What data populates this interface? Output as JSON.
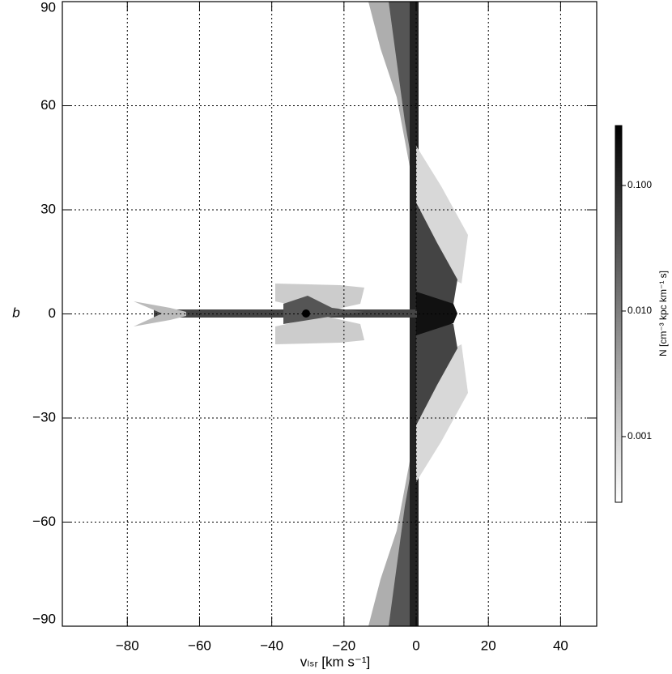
{
  "chart_data": {
    "type": "density-map",
    "xlabel": "vₗₛᵣ [km s⁻¹]",
    "ylabel": "b",
    "xlim": [
      -98,
      50
    ],
    "ylim": [
      -90,
      90
    ],
    "xticks": [
      {
        "value": -80,
        "label": "−80"
      },
      {
        "value": -60,
        "label": "−60"
      },
      {
        "value": -40,
        "label": "−40"
      },
      {
        "value": -20,
        "label": "−20"
      },
      0,
      20,
      40
    ],
    "yticks": [
      {
        "value": -90,
        "label": "−90"
      },
      {
        "value": -60,
        "label": "−60"
      },
      {
        "value": -30,
        "label": "−30"
      },
      0,
      30,
      60,
      90
    ],
    "grid": true,
    "colorbar": {
      "label": "N [cm⁻³ kpc km⁻¹ s]",
      "scale": "log",
      "clim": [
        0.0003,
        0.3
      ],
      "ticks": [
        0.001,
        {
          "value": 0.01,
          "label": "0.010"
        },
        {
          "value": 0.1,
          "label": "0.100"
        }
      ],
      "colormap": [
        "#ffffff",
        "#000000"
      ]
    }
  }
}
